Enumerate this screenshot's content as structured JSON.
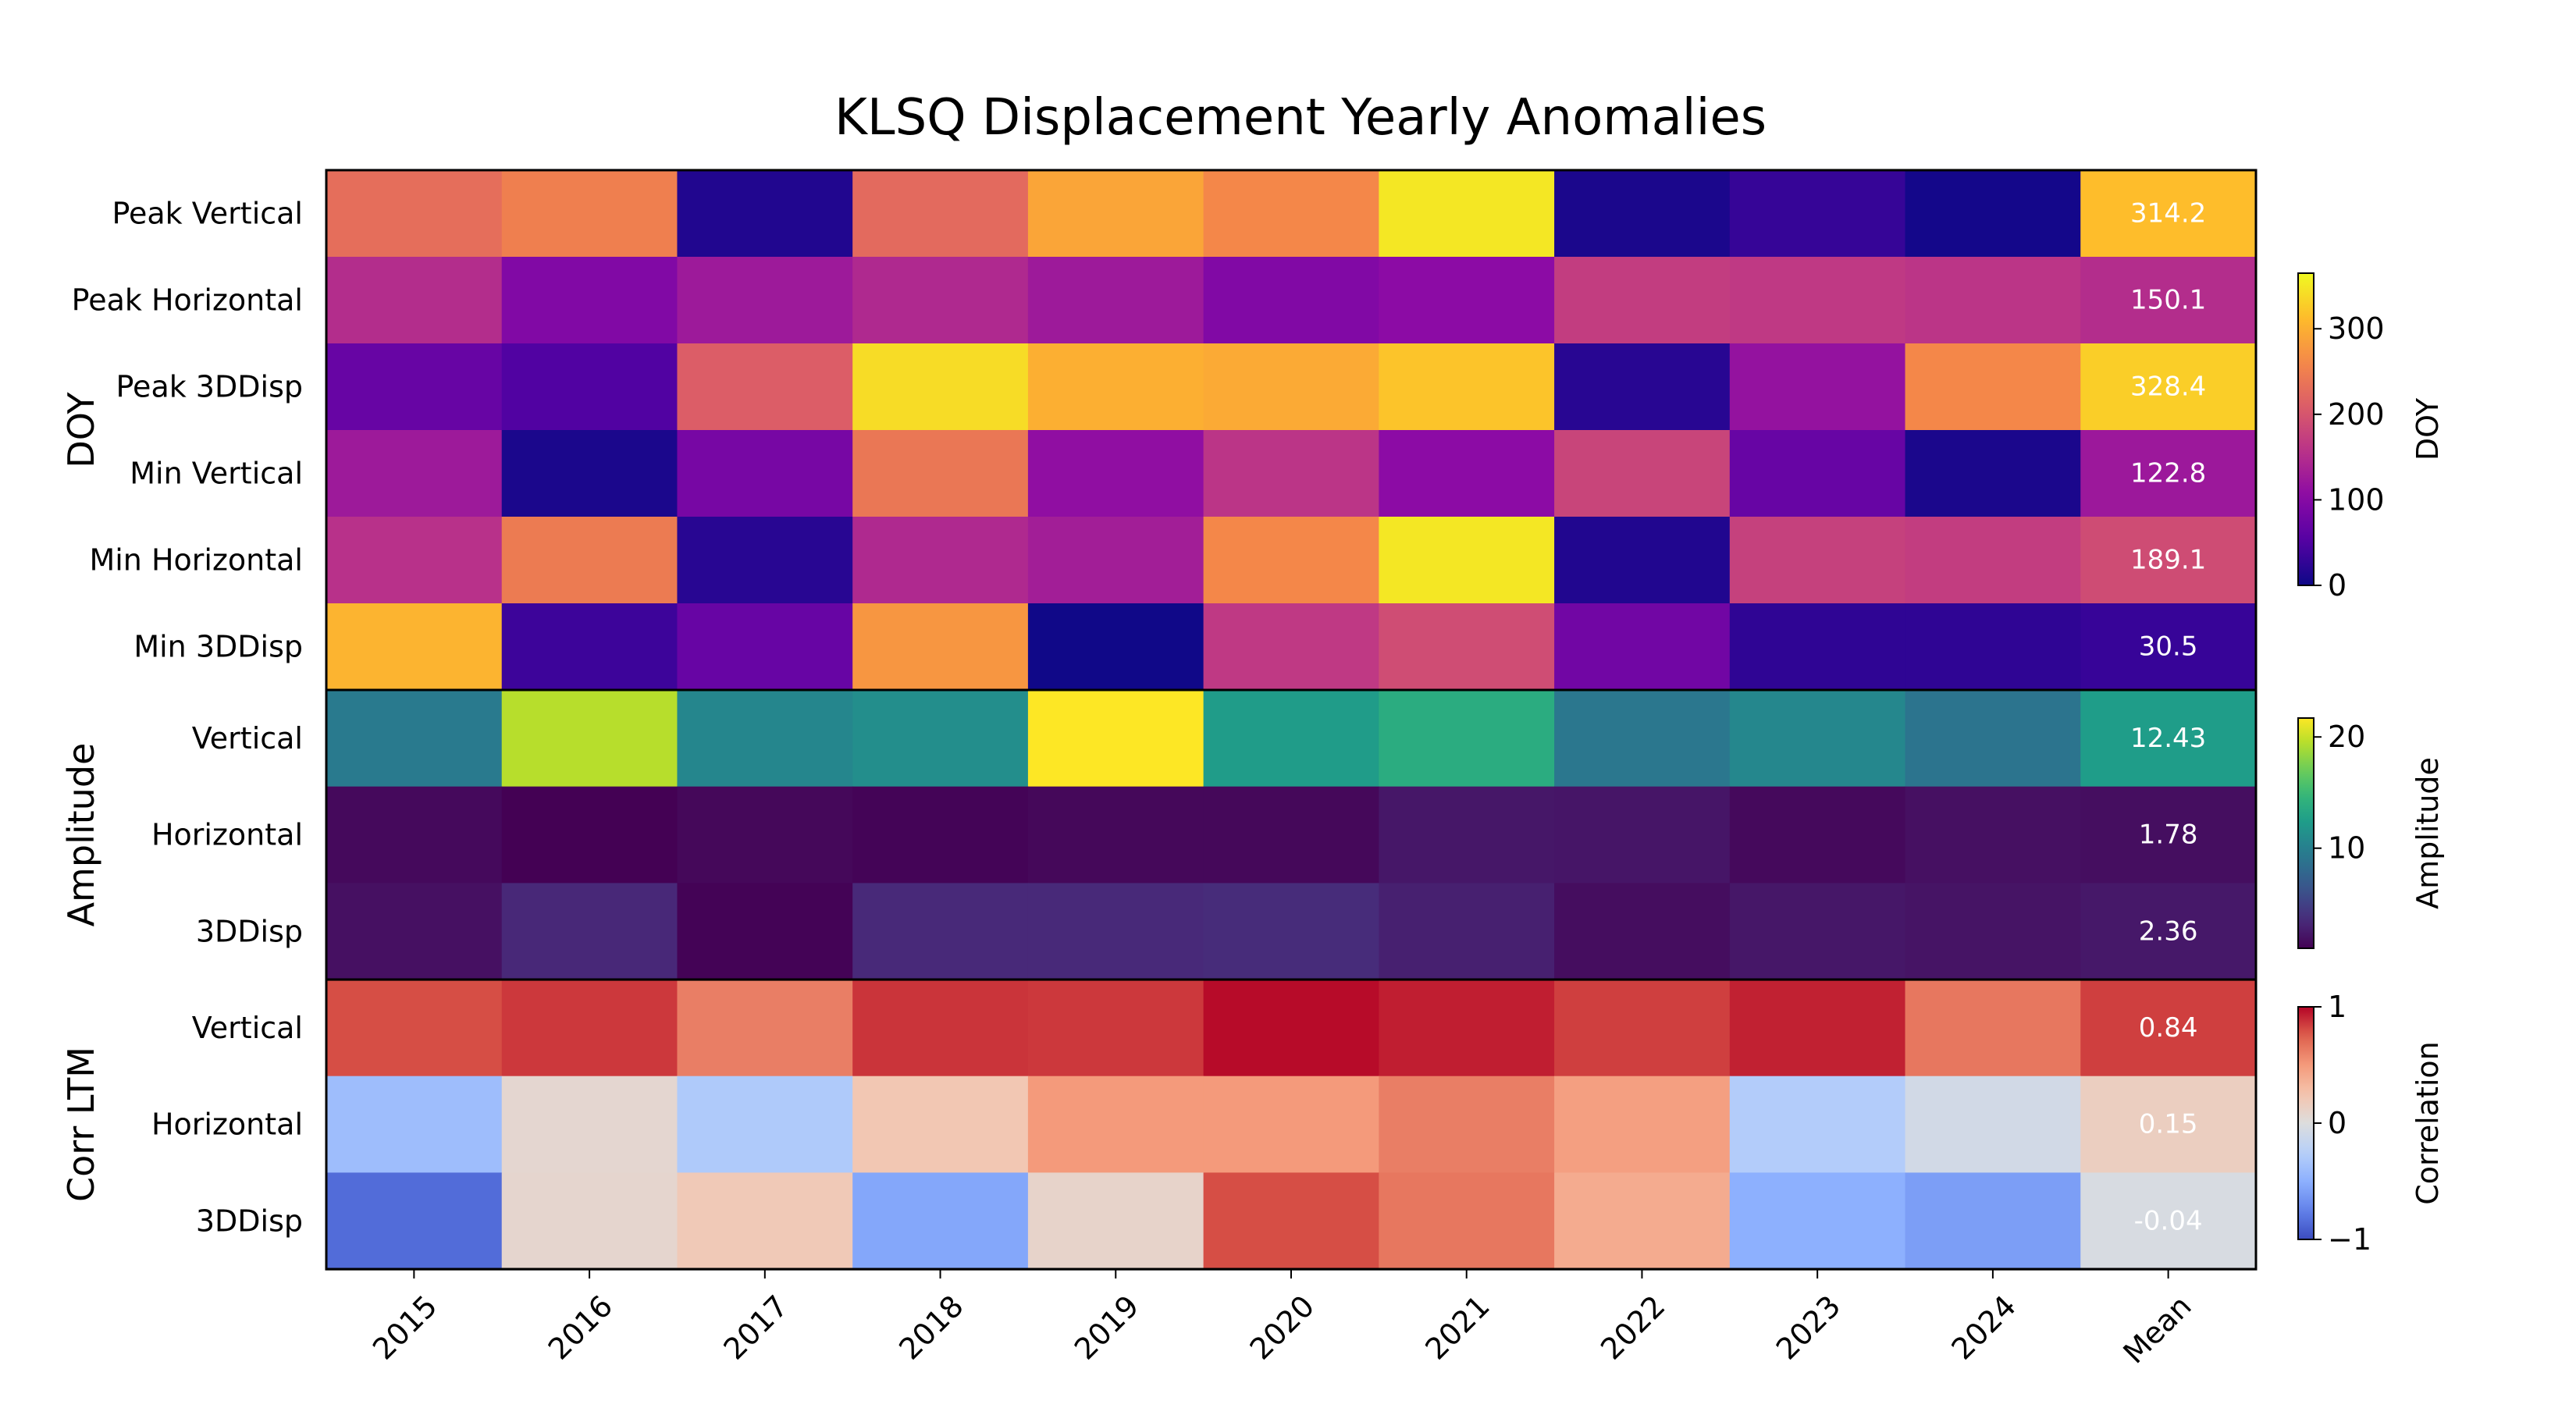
{
  "chart_data": {
    "type": "heatmap",
    "title": "KLSQ Displacement Yearly Anomalies",
    "columns": [
      "2015",
      "2016",
      "2017",
      "2018",
      "2019",
      "2020",
      "2021",
      "2022",
      "2023",
      "2024",
      "Mean"
    ],
    "panels": [
      {
        "label": "DOY",
        "colormap": "plasma",
        "colorbar": {
          "label": "DOY",
          "range": [
            0,
            365
          ],
          "ticks": [
            "0",
            "100",
            "200",
            "300"
          ],
          "tick_values": [
            0,
            100,
            200,
            300
          ]
        },
        "rows": [
          {
            "label": "Peak Vertical",
            "values": [
              230,
              250,
              15,
              225,
              290,
              260,
              350,
              10,
              30,
              5,
              314
            ],
            "mean_label": "314.2"
          },
          {
            "label": "Peak Horizontal",
            "values": [
              150,
              95,
              125,
              145,
              125,
              95,
              105,
              170,
              165,
              160,
              150
            ],
            "mean_label": "150.1"
          },
          {
            "label": "Peak 3DDisp",
            "values": [
              70,
              50,
              210,
              340,
              300,
              295,
              320,
              20,
              115,
              260,
              328
            ],
            "mean_label": "328.4"
          },
          {
            "label": "Min Vertical",
            "values": [
              125,
              10,
              85,
              240,
              110,
              160,
              105,
              180,
              70,
              10,
              123
            ],
            "mean_label": "122.8"
          },
          {
            "label": "Min Horizontal",
            "values": [
              155,
              245,
              20,
              145,
              130,
              260,
              350,
              15,
              175,
              170,
              189
            ],
            "mean_label": "189.1"
          },
          {
            "label": "Min 3DDisp",
            "values": [
              305,
              35,
              70,
              275,
              2,
              165,
              190,
              80,
              25,
              25,
              31
            ],
            "mean_label": "30.5"
          }
        ]
      },
      {
        "label": "Amplitude",
        "colormap": "viridis",
        "colorbar": {
          "label": "Amplitude",
          "range": [
            1.0,
            21.7
          ],
          "ticks": [
            "10",
            "20"
          ],
          "tick_values": [
            10,
            20
          ]
        },
        "rows": [
          {
            "label": "Vertical",
            "values": [
              9.5,
              19.5,
              10.5,
              11.2,
              21.7,
              12.3,
              13.8,
              9.2,
              10.6,
              9.0,
              12.43
            ],
            "mean_label": "12.43"
          },
          {
            "label": "Horizontal",
            "values": [
              1.5,
              1.0,
              1.4,
              1.2,
              1.4,
              1.4,
              2.3,
              2.2,
              1.5,
              1.9,
              1.78
            ],
            "mean_label": "1.78"
          },
          {
            "label": "3DDisp",
            "values": [
              1.9,
              3.3,
              1.1,
              3.4,
              3.4,
              3.6,
              2.8,
              1.7,
              2.3,
              2.1,
              2.36
            ],
            "mean_label": "2.36"
          }
        ]
      },
      {
        "label": "Corr LTM",
        "colormap": "coolwarm",
        "colorbar": {
          "label": "Correlation",
          "range": [
            -1,
            1
          ],
          "ticks": [
            "−1",
            "0",
            "1"
          ],
          "tick_values": [
            -1,
            0,
            1
          ]
        },
        "rows": [
          {
            "label": "Vertical",
            "values": [
              0.8,
              0.86,
              0.62,
              0.87,
              0.86,
              0.98,
              0.93,
              0.84,
              0.92,
              0.65,
              0.84
            ],
            "mean_label": "0.84"
          },
          {
            "label": "Horizontal",
            "values": [
              -0.4,
              0.07,
              -0.3,
              0.22,
              0.5,
              0.5,
              0.62,
              0.47,
              -0.28,
              -0.08,
              0.15
            ],
            "mean_label": "0.15"
          },
          {
            "label": "3DDisp",
            "values": [
              -0.85,
              0.08,
              0.2,
              -0.55,
              0.1,
              0.8,
              0.65,
              0.4,
              -0.5,
              -0.6,
              -0.04
            ],
            "mean_label": "-0.04"
          }
        ]
      }
    ]
  }
}
